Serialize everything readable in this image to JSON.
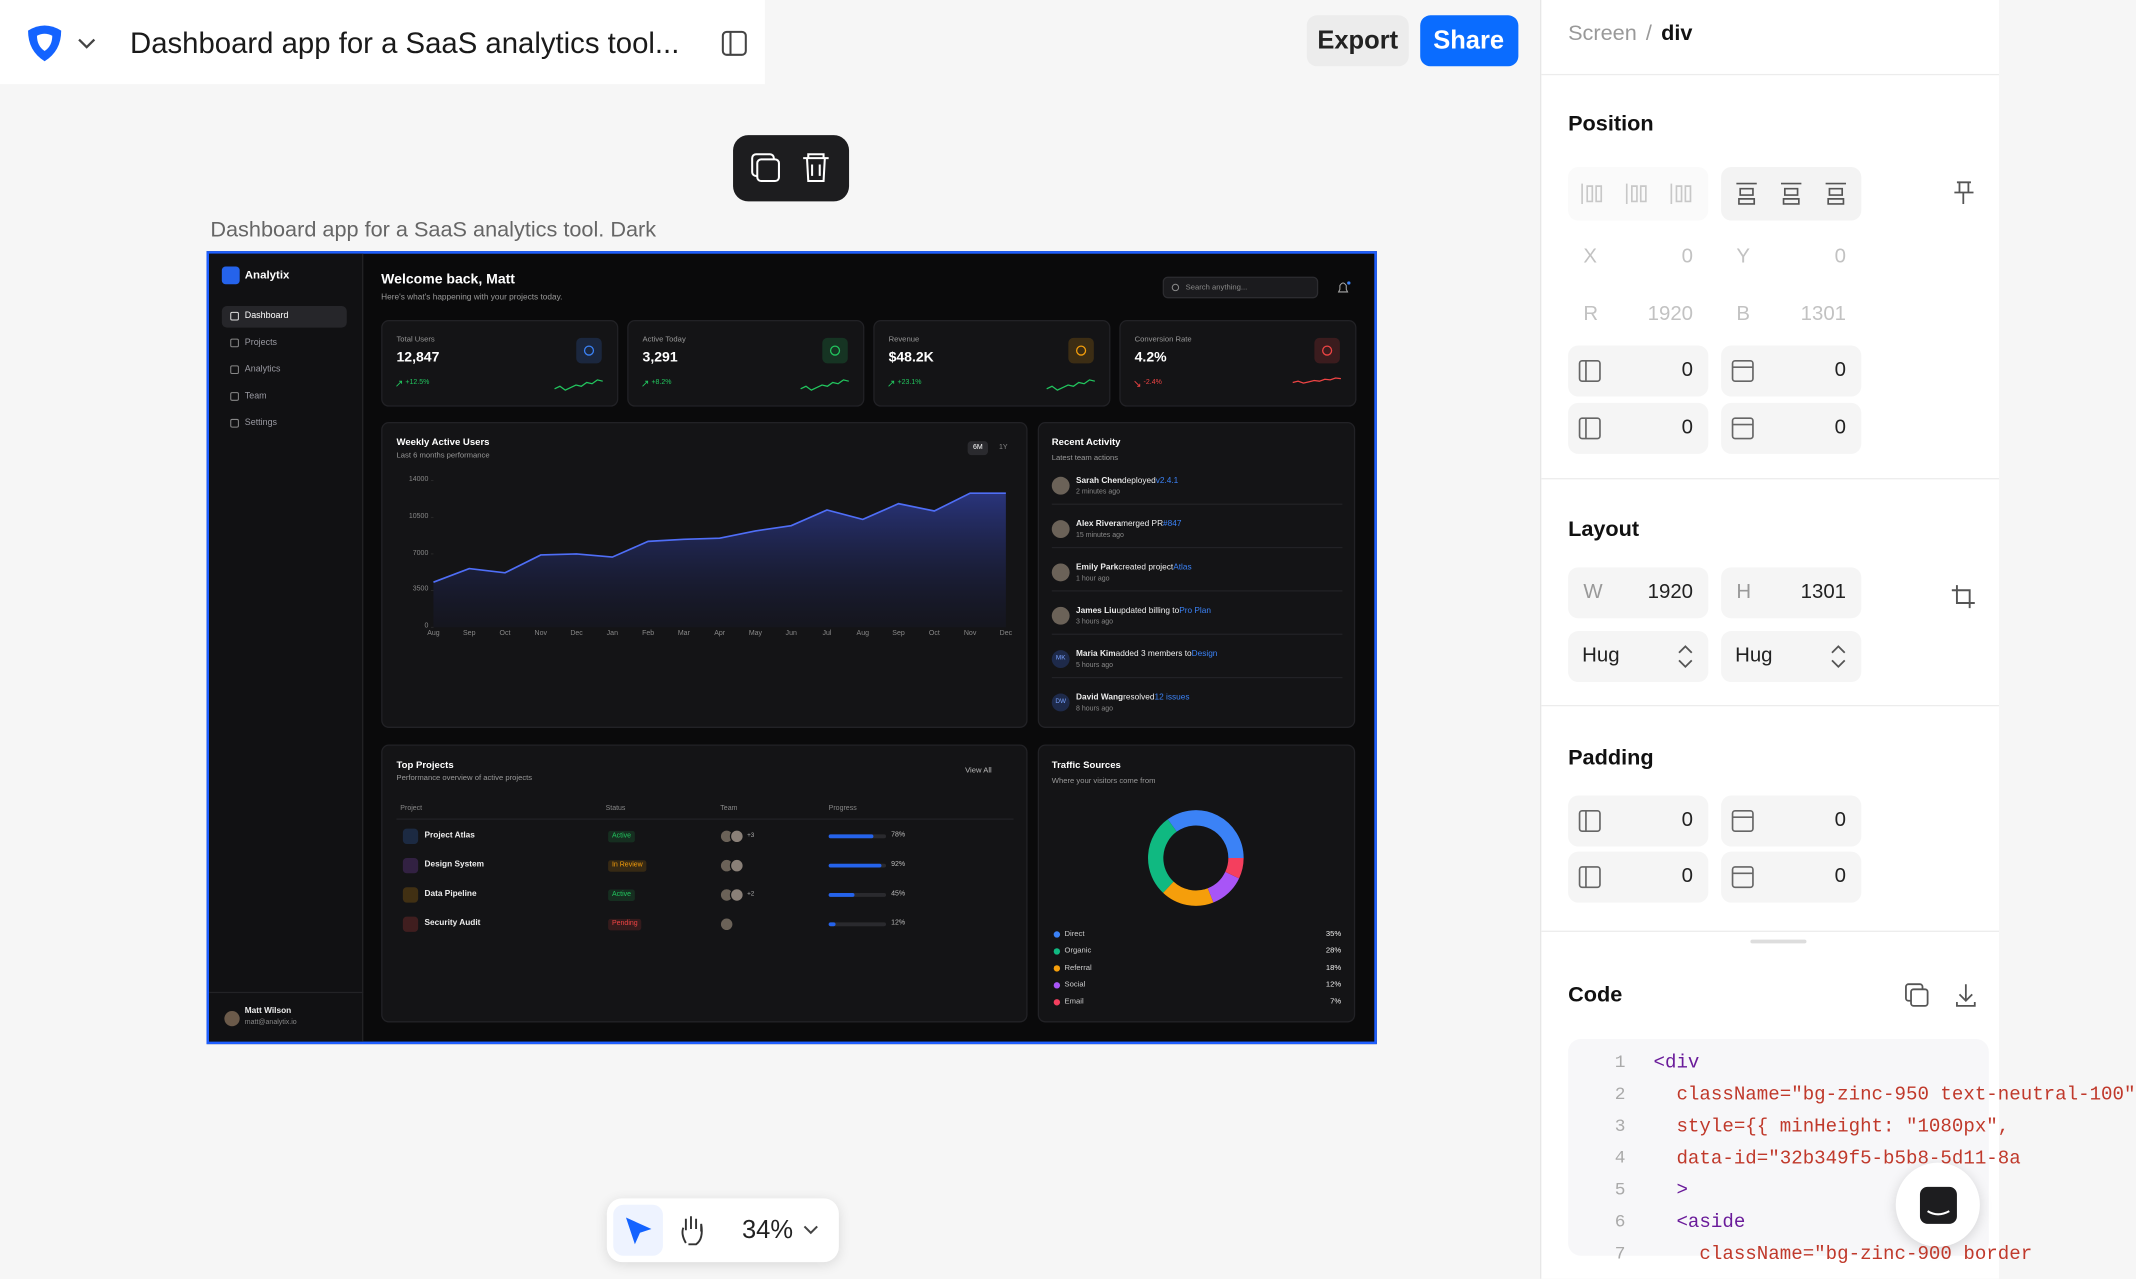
{
  "toolbar": {
    "project_title": "Dashboard app for a SaaS analytics tool...",
    "export": "Export",
    "share": "Share",
    "zoom": "34%"
  },
  "canvas": {
    "frame_label": "Dashboard app for a SaaS analytics tool. Dark"
  },
  "dashboard": {
    "brand": "Analytix",
    "nav": [
      "Dashboard",
      "Projects",
      "Analytics",
      "Team",
      "Settings"
    ],
    "user": {
      "name": "Matt Wilson",
      "email": "matt@analytix.io"
    },
    "welcome": "Welcome back, Matt",
    "welcome_sub": "Here's what's happening with your projects today.",
    "search": "Search anything...",
    "stats": [
      {
        "label": "Total Users",
        "value": "12,847",
        "change": "+12.5%",
        "color": "#3b82f6"
      },
      {
        "label": "Active Today",
        "value": "3,291",
        "change": "+8.2%",
        "color": "#22c55e"
      },
      {
        "label": "Revenue",
        "value": "$48.2K",
        "change": "+23.1%",
        "color": "#f59e0b"
      },
      {
        "label": "Conversion Rate",
        "value": "4.2%",
        "change": "-2.4%",
        "color": "#ef4444"
      }
    ],
    "activity": {
      "title": "Recent Activity",
      "subtitle": "Latest team actions",
      "items": [
        {
          "name": "Sarah Chen",
          "action": "deployed",
          "target": "v2.4.1",
          "time": "2 minutes ago"
        },
        {
          "name": "Alex Rivera",
          "action": "merged PR",
          "target": "#847",
          "time": "15 minutes ago"
        },
        {
          "name": "Emily Park",
          "action": "created project",
          "target": "Atlas",
          "time": "1 hour ago"
        },
        {
          "name": "James Liu",
          "action": "updated billing to",
          "target": "Pro Plan",
          "time": "3 hours ago"
        },
        {
          "initials": "MK",
          "name": "Maria Kim",
          "action": "added 3 members to",
          "target": "Design",
          "time": "5 hours ago"
        },
        {
          "initials": "DW",
          "name": "David Wang",
          "action": "resolved",
          "target": "12 issues",
          "time": "8 hours ago"
        }
      ]
    },
    "projects": {
      "title": "Top Projects",
      "subtitle": "Performance overview of active projects",
      "view_all": "View All",
      "headers": [
        "Project",
        "Status",
        "Team",
        "Progress"
      ],
      "rows": [
        {
          "name": "Project Atlas",
          "status": "Active",
          "color": "#22c55e",
          "team_extra": "+3",
          "progress": 78,
          "progress_label": "78%"
        },
        {
          "name": "Design System",
          "status": "In Review",
          "color": "#f59e0b",
          "progress": 92,
          "progress_label": "92%"
        },
        {
          "name": "Data Pipeline",
          "status": "Active",
          "color": "#22c55e",
          "team_extra": "+2",
          "progress": 45,
          "progress_label": "45%"
        },
        {
          "name": "Security Audit",
          "status": "Pending",
          "color": "#ef4444",
          "progress": 12,
          "progress_label": "12%"
        }
      ]
    }
  },
  "chart_data": [
    {
      "type": "area",
      "title": "Weekly Active Users",
      "subtitle": "Last 6 months performance",
      "toggles": [
        "6M",
        "1Y"
      ],
      "categories": [
        "Aug",
        "Sep",
        "Oct",
        "Nov",
        "Dec",
        "Jan",
        "Feb",
        "Mar",
        "Apr",
        "May",
        "Jun",
        "Jul",
        "Aug",
        "Sep",
        "Oct",
        "Nov",
        "Dec"
      ],
      "values": [
        4300,
        5600,
        5200,
        6900,
        7000,
        6700,
        8200,
        8400,
        8500,
        9200,
        9700,
        11200,
        10300,
        11800,
        11100,
        12800,
        12800
      ],
      "color": "#4f6ef7",
      "ylim": [
        0,
        14000
      ],
      "yticks": [
        0,
        3500,
        7000,
        10500,
        14000
      ],
      "grid": false
    },
    {
      "type": "pie",
      "title": "Traffic Sources",
      "subtitle": "Where your visitors come from",
      "categories": [
        "Direct",
        "Organic",
        "Referral",
        "Social",
        "Email"
      ],
      "values": [
        35,
        28,
        18,
        12,
        7
      ],
      "value_labels": [
        "35%",
        "28%",
        "18%",
        "12%",
        "7%"
      ],
      "colors": [
        "#3b82f6",
        "#10b981",
        "#f59e0b",
        "#a855f7",
        "#f43f5e"
      ]
    }
  ],
  "inspector": {
    "breadcrumb": [
      "Screen",
      "/",
      "div"
    ],
    "position": {
      "title": "Position",
      "coords": [
        {
          "label": "X",
          "value": "0"
        },
        {
          "label": "Y",
          "value": "0"
        },
        {
          "label": "R",
          "value": "1920"
        },
        {
          "label": "B",
          "value": "1301"
        }
      ],
      "offsets": [
        "0",
        "0",
        "0",
        "0"
      ]
    },
    "layout": {
      "title": "Layout",
      "size": [
        {
          "label": "W",
          "value": "1920"
        },
        {
          "label": "H",
          "value": "1301"
        }
      ],
      "sizing": [
        "Hug",
        "Hug"
      ]
    },
    "padding": {
      "title": "Padding",
      "values": [
        "0",
        "0",
        "0",
        "0"
      ]
    },
    "code": {
      "title": "Code",
      "lines": [
        "<div",
        "  className=\"bg-zinc-950 text-neutral-100\"",
        "  style={{ minHeight: \"1080px\",",
        "  data-id=\"32b349f5-b5b8-5d11-8a",
        "  >",
        "  <aside",
        "    className=\"bg-zinc-900 border"
      ]
    }
  }
}
